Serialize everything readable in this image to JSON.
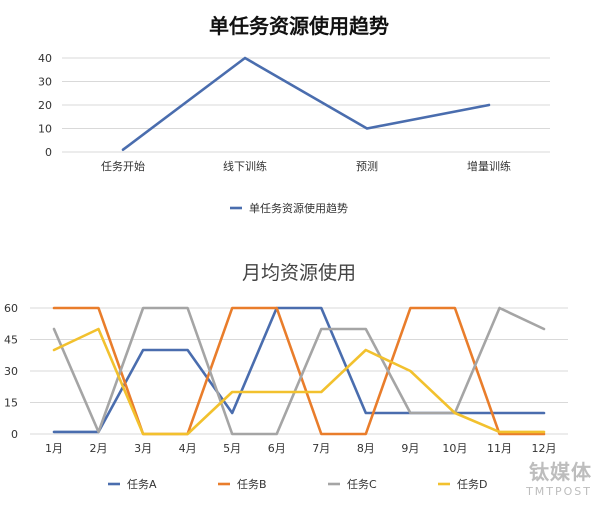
{
  "watermark": {
    "cn": "钛媒体",
    "en": "TMTPOST"
  },
  "chart_data": [
    {
      "type": "line",
      "title": "单任务资源使用趋势",
      "categories": [
        "任务开始",
        "线下训练",
        "预测",
        "增量训练"
      ],
      "series": [
        {
          "name": "单任务资源使用趋势",
          "values": [
            1,
            40,
            10,
            20
          ],
          "color": "#4A6DAE"
        }
      ],
      "ylim": [
        0,
        40
      ],
      "yticks": [
        0,
        10,
        20,
        30,
        40
      ],
      "grid": true,
      "legend": "bottom"
    },
    {
      "type": "line",
      "title": "月均资源使用",
      "categories": [
        "1月",
        "2月",
        "3月",
        "4月",
        "5月",
        "6月",
        "7月",
        "8月",
        "9月",
        "10月",
        "11月",
        "12月"
      ],
      "series": [
        {
          "name": "任务A",
          "values": [
            1,
            1,
            40,
            40,
            10,
            60,
            60,
            10,
            10,
            10,
            10,
            10
          ],
          "color": "#4A6DAE"
        },
        {
          "name": "任务B",
          "values": [
            60,
            60,
            0,
            0,
            60,
            60,
            0,
            0,
            60,
            60,
            0,
            0
          ],
          "color": "#E97D2B"
        },
        {
          "name": "任务C",
          "values": [
            50,
            1,
            60,
            60,
            0,
            0,
            50,
            50,
            10,
            10,
            60,
            50
          ],
          "color": "#A5A5A5"
        },
        {
          "name": "任务D",
          "values": [
            40,
            50,
            0,
            0,
            20,
            20,
            20,
            40,
            30,
            10,
            1,
            1
          ],
          "color": "#F2C12E"
        }
      ],
      "ylim": [
        0,
        60
      ],
      "yticks": [
        0,
        15,
        30,
        45,
        60
      ],
      "grid": true,
      "legend": "bottom"
    }
  ]
}
